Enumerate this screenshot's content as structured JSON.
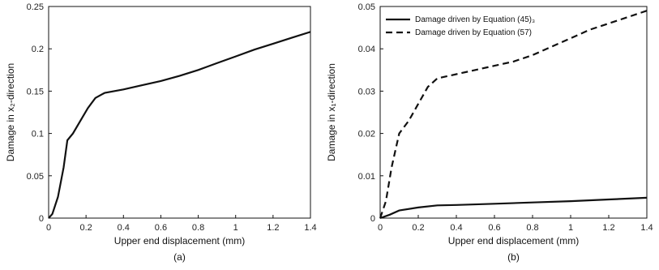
{
  "chart_data": [
    {
      "type": "line",
      "panel_label": "(a)",
      "xlabel": "Upper end displacement (mm)",
      "ylabel": "Damage in x₂-direction",
      "xlim": [
        0,
        1.4
      ],
      "ylim": [
        0,
        0.25
      ],
      "xticks": [
        "0",
        "0.2",
        "0.4",
        "0.6",
        "0.8",
        "1",
        "1.2",
        "1.4"
      ],
      "yticks": [
        "0",
        "0.05",
        "0.1",
        "0.15",
        "0.2",
        "0.25"
      ],
      "grid": false,
      "series": [
        {
          "style": "solid",
          "x": [
            0,
            0.02,
            0.05,
            0.08,
            0.1,
            0.13,
            0.17,
            0.21,
            0.25,
            0.3,
            0.4,
            0.5,
            0.6,
            0.7,
            0.8,
            0.9,
            1.0,
            1.1,
            1.2,
            1.3,
            1.4
          ],
          "y": [
            0,
            0.005,
            0.025,
            0.06,
            0.092,
            0.1,
            0.115,
            0.13,
            0.142,
            0.148,
            0.152,
            0.157,
            0.162,
            0.168,
            0.175,
            0.183,
            0.191,
            0.199,
            0.206,
            0.213,
            0.22
          ]
        }
      ]
    },
    {
      "type": "line",
      "panel_label": "(b)",
      "xlabel": "Upper end displacement (mm)",
      "ylabel": "Damage in x₁-direction",
      "xlim": [
        0,
        1.4
      ],
      "ylim": [
        0,
        0.05
      ],
      "xticks": [
        "0",
        "0.2",
        "0.4",
        "0.6",
        "0.8",
        "1",
        "1.2",
        "1.4"
      ],
      "yticks": [
        "0",
        "0.01",
        "0.02",
        "0.03",
        "0.04",
        "0.05"
      ],
      "grid": false,
      "legend_position": "top-left",
      "series": [
        {
          "name": "Damage driven by Equation (45)₃",
          "style": "solid",
          "x": [
            0,
            0.05,
            0.1,
            0.2,
            0.3,
            0.4,
            0.6,
            0.8,
            1.0,
            1.2,
            1.4
          ],
          "y": [
            0,
            0.0008,
            0.0018,
            0.0025,
            0.003,
            0.0031,
            0.0034,
            0.0037,
            0.004,
            0.0044,
            0.0048
          ]
        },
        {
          "name": "Damage driven by Equation (57)",
          "style": "dashed",
          "x": [
            0,
            0.03,
            0.06,
            0.1,
            0.15,
            0.2,
            0.25,
            0.3,
            0.4,
            0.5,
            0.6,
            0.7,
            0.8,
            0.9,
            1.0,
            1.1,
            1.2,
            1.3,
            1.4
          ],
          "y": [
            0,
            0.004,
            0.012,
            0.02,
            0.023,
            0.027,
            0.031,
            0.033,
            0.034,
            0.035,
            0.036,
            0.037,
            0.0385,
            0.0405,
            0.0425,
            0.0445,
            0.046,
            0.0475,
            0.049
          ]
        }
      ]
    }
  ]
}
